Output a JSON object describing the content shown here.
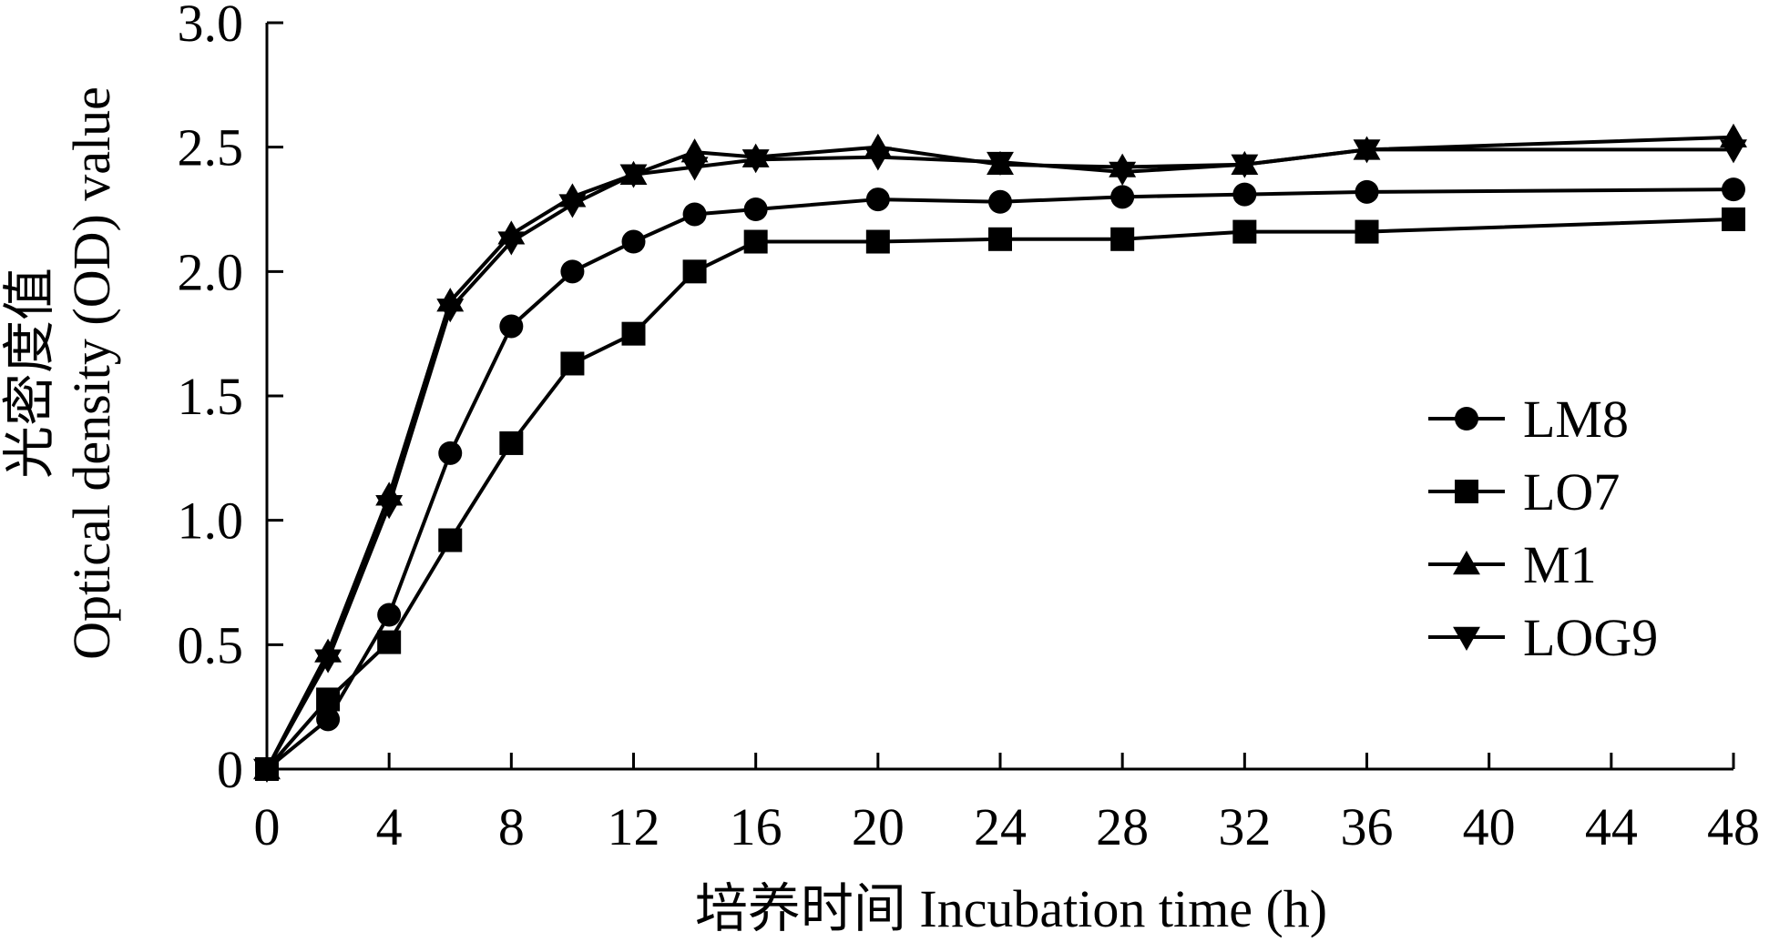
{
  "chart_data": {
    "type": "line",
    "xlabel": "培养时间 Incubation time (h)",
    "ylabel_line1": "光密度值",
    "ylabel_line2": "Optical density (OD) value",
    "x_ticks": [
      "0",
      "4",
      "8",
      "12",
      "16",
      "20",
      "24",
      "28",
      "32",
      "36",
      "40",
      "44",
      "48"
    ],
    "y_ticks": [
      "0",
      "0.5",
      "1.0",
      "1.5",
      "2.0",
      "2.5",
      "3.0"
    ],
    "xlim": [
      0,
      48
    ],
    "ylim": [
      0,
      3.0
    ],
    "legend_position": "right-middle",
    "series": [
      {
        "name": "LM8",
        "marker": "circle",
        "x": [
          0,
          2,
          4,
          6,
          8,
          10,
          12,
          14,
          16,
          20,
          24,
          28,
          32,
          36,
          48
        ],
        "y": [
          0,
          0.2,
          0.62,
          1.27,
          1.78,
          2.0,
          2.12,
          2.23,
          2.25,
          2.29,
          2.28,
          2.3,
          2.31,
          2.32,
          2.33
        ]
      },
      {
        "name": "LO7",
        "marker": "square",
        "x": [
          0,
          2,
          4,
          6,
          8,
          10,
          12,
          14,
          16,
          20,
          24,
          28,
          32,
          36,
          48
        ],
        "y": [
          0,
          0.28,
          0.51,
          0.92,
          1.31,
          1.63,
          1.75,
          2.0,
          2.12,
          2.12,
          2.13,
          2.13,
          2.16,
          2.16,
          2.21
        ]
      },
      {
        "name": "M1",
        "marker": "triangle-up",
        "x": [
          0,
          2,
          4,
          6,
          8,
          10,
          12,
          14,
          16,
          20,
          24,
          28,
          32,
          36,
          48
        ],
        "y": [
          0,
          0.47,
          1.1,
          1.88,
          2.15,
          2.3,
          2.39,
          2.48,
          2.46,
          2.5,
          2.43,
          2.42,
          2.43,
          2.49,
          2.54
        ]
      },
      {
        "name": "LOG9",
        "marker": "triangle-down",
        "x": [
          0,
          2,
          4,
          6,
          8,
          10,
          12,
          14,
          16,
          20,
          24,
          28,
          32,
          36,
          48
        ],
        "y": [
          0,
          0.44,
          1.06,
          1.85,
          2.12,
          2.27,
          2.39,
          2.42,
          2.45,
          2.46,
          2.44,
          2.4,
          2.43,
          2.49,
          2.49
        ]
      }
    ]
  }
}
